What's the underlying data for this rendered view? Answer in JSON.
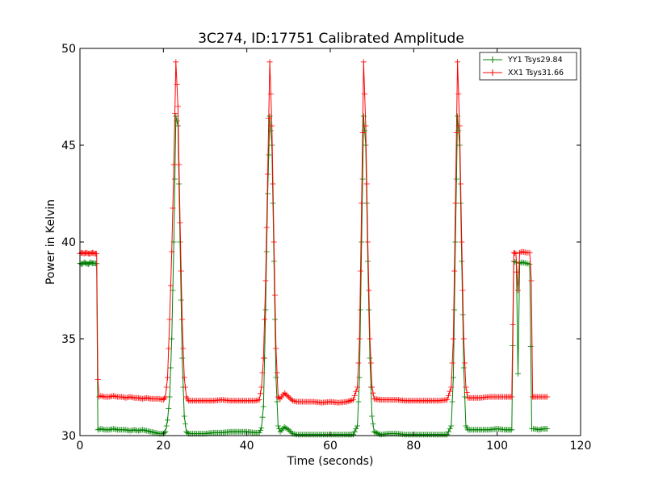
{
  "chart_data": {
    "type": "line",
    "title": "3C274, ID:17751 Calibrated Amplitude",
    "xlabel": "Time (seconds)",
    "ylabel": "Power in Kelvin",
    "xlim": [
      0,
      120
    ],
    "ylim": [
      30,
      50
    ],
    "xticks": [
      0,
      20,
      40,
      60,
      80,
      100,
      120
    ],
    "yticks": [
      30,
      35,
      40,
      45,
      50
    ],
    "grid": false,
    "legend_position": "top-right",
    "markers": "plus",
    "series": [
      {
        "name": "YY1 Tsys29.84",
        "color": "#008000",
        "points": [
          [
            0.0,
            38.9
          ],
          [
            0.5,
            38.85
          ],
          [
            1.0,
            38.95
          ],
          [
            1.5,
            38.9
          ],
          [
            2.0,
            38.85
          ],
          [
            2.5,
            38.95
          ],
          [
            3.0,
            38.9
          ],
          [
            3.5,
            38.9
          ],
          [
            4.0,
            38.88
          ],
          [
            4.3,
            30.3
          ],
          [
            5.0,
            30.35
          ],
          [
            6.0,
            30.3
          ],
          [
            7.0,
            30.3
          ],
          [
            8.0,
            30.35
          ],
          [
            9.0,
            30.3
          ],
          [
            10.0,
            30.3
          ],
          [
            11.0,
            30.3
          ],
          [
            12.0,
            30.25
          ],
          [
            13.0,
            30.3
          ],
          [
            14.0,
            30.25
          ],
          [
            15.0,
            30.3
          ],
          [
            16.0,
            30.25
          ],
          [
            17.0,
            30.2
          ],
          [
            18.0,
            30.15
          ],
          [
            19.0,
            30.1
          ],
          [
            20.0,
            30.1
          ],
          [
            20.5,
            30.2
          ],
          [
            21.0,
            30.8
          ],
          [
            21.5,
            32.0
          ],
          [
            22.0,
            35.0
          ],
          [
            22.5,
            40.0
          ],
          [
            23.0,
            46.5
          ],
          [
            23.5,
            46.0
          ],
          [
            24.0,
            40.0
          ],
          [
            24.5,
            34.0
          ],
          [
            25.0,
            31.0
          ],
          [
            25.5,
            30.2
          ],
          [
            26.0,
            30.1
          ],
          [
            28.0,
            30.1
          ],
          [
            30.0,
            30.1
          ],
          [
            32.0,
            30.15
          ],
          [
            34.0,
            30.15
          ],
          [
            36.0,
            30.2
          ],
          [
            38.0,
            30.2
          ],
          [
            40.0,
            30.2
          ],
          [
            42.0,
            30.15
          ],
          [
            43.0,
            30.15
          ],
          [
            43.5,
            30.4
          ],
          [
            44.0,
            31.5
          ],
          [
            44.5,
            36.5
          ],
          [
            45.0,
            42.5
          ],
          [
            45.5,
            46.5
          ],
          [
            46.0,
            45.0
          ],
          [
            46.5,
            39.0
          ],
          [
            47.0,
            33.0
          ],
          [
            47.5,
            30.5
          ],
          [
            48.0,
            30.2
          ],
          [
            49.0,
            30.45
          ],
          [
            50.0,
            30.3
          ],
          [
            51.0,
            30.1
          ],
          [
            52.0,
            30.05
          ],
          [
            54.0,
            30.05
          ],
          [
            56.0,
            30.05
          ],
          [
            58.0,
            30.05
          ],
          [
            60.0,
            30.05
          ],
          [
            62.0,
            30.05
          ],
          [
            64.0,
            30.05
          ],
          [
            65.5,
            30.05
          ],
          [
            66.5,
            30.5
          ],
          [
            67.0,
            33.0
          ],
          [
            67.5,
            40.0
          ],
          [
            68.0,
            46.5
          ],
          [
            68.5,
            45.0
          ],
          [
            69.0,
            39.0
          ],
          [
            69.5,
            34.0
          ],
          [
            70.0,
            31.0
          ],
          [
            70.5,
            30.2
          ],
          [
            72.0,
            30.05
          ],
          [
            74.0,
            30.1
          ],
          [
            76.0,
            30.1
          ],
          [
            78.0,
            30.05
          ],
          [
            80.0,
            30.05
          ],
          [
            82.0,
            30.05
          ],
          [
            84.0,
            30.05
          ],
          [
            86.0,
            30.05
          ],
          [
            88.0,
            30.05
          ],
          [
            89.0,
            30.5
          ],
          [
            89.5,
            33.0
          ],
          [
            90.0,
            40.0
          ],
          [
            90.5,
            46.5
          ],
          [
            91.0,
            45.0
          ],
          [
            91.5,
            39.0
          ],
          [
            92.0,
            33.5
          ],
          [
            92.5,
            30.5
          ],
          [
            93.0,
            30.3
          ],
          [
            94.0,
            30.3
          ],
          [
            96.0,
            30.3
          ],
          [
            98.0,
            30.3
          ],
          [
            100.0,
            30.35
          ],
          [
            102.0,
            30.3
          ],
          [
            103.5,
            30.3
          ],
          [
            104.0,
            39.0
          ],
          [
            104.6,
            38.95
          ],
          [
            105.0,
            33.2
          ],
          [
            105.4,
            38.9
          ],
          [
            106.0,
            38.95
          ],
          [
            107.0,
            38.9
          ],
          [
            107.8,
            38.85
          ],
          [
            108.3,
            30.35
          ],
          [
            109.0,
            30.35
          ],
          [
            110.0,
            30.3
          ],
          [
            111.0,
            30.35
          ],
          [
            112.0,
            30.35
          ]
        ]
      },
      {
        "name": "XX1 Tsys31.66",
        "color": "#ff0000",
        "points": [
          [
            0.0,
            39.4
          ],
          [
            0.5,
            39.45
          ],
          [
            1.0,
            39.4
          ],
          [
            1.5,
            39.45
          ],
          [
            2.0,
            39.4
          ],
          [
            2.5,
            39.4
          ],
          [
            3.0,
            39.45
          ],
          [
            3.5,
            39.4
          ],
          [
            4.0,
            39.4
          ],
          [
            4.3,
            32.9
          ],
          [
            4.6,
            32.0
          ],
          [
            5.0,
            32.05
          ],
          [
            6.0,
            32.0
          ],
          [
            7.0,
            32.0
          ],
          [
            8.0,
            32.05
          ],
          [
            9.0,
            32.0
          ],
          [
            10.0,
            32.0
          ],
          [
            11.0,
            31.95
          ],
          [
            12.0,
            32.0
          ],
          [
            13.0,
            31.95
          ],
          [
            14.0,
            31.95
          ],
          [
            15.0,
            31.9
          ],
          [
            16.0,
            31.95
          ],
          [
            17.0,
            31.9
          ],
          [
            18.0,
            31.9
          ],
          [
            19.0,
            31.9
          ],
          [
            20.0,
            31.85
          ],
          [
            20.5,
            32.0
          ],
          [
            21.0,
            33.0
          ],
          [
            21.5,
            36.0
          ],
          [
            22.0,
            39.5
          ],
          [
            22.5,
            44.0
          ],
          [
            23.0,
            49.3
          ],
          [
            23.5,
            47.0
          ],
          [
            24.0,
            41.0
          ],
          [
            24.5,
            36.0
          ],
          [
            25.0,
            33.0
          ],
          [
            25.5,
            32.0
          ],
          [
            26.0,
            31.8
          ],
          [
            28.0,
            31.8
          ],
          [
            30.0,
            31.8
          ],
          [
            32.0,
            31.8
          ],
          [
            34.0,
            31.85
          ],
          [
            36.0,
            31.8
          ],
          [
            38.0,
            31.8
          ],
          [
            40.0,
            31.8
          ],
          [
            42.0,
            31.8
          ],
          [
            43.0,
            31.85
          ],
          [
            43.5,
            32.5
          ],
          [
            44.0,
            34.0
          ],
          [
            44.5,
            38.0
          ],
          [
            45.0,
            43.5
          ],
          [
            45.5,
            49.3
          ],
          [
            46.0,
            46.0
          ],
          [
            46.5,
            40.0
          ],
          [
            47.0,
            34.5
          ],
          [
            47.5,
            32.0
          ],
          [
            48.0,
            31.9
          ],
          [
            49.0,
            32.2
          ],
          [
            50.0,
            32.0
          ],
          [
            51.0,
            31.8
          ],
          [
            52.0,
            31.75
          ],
          [
            54.0,
            31.75
          ],
          [
            56.0,
            31.75
          ],
          [
            58.0,
            31.7
          ],
          [
            60.0,
            31.75
          ],
          [
            62.0,
            31.7
          ],
          [
            64.0,
            31.75
          ],
          [
            65.5,
            31.85
          ],
          [
            66.5,
            32.5
          ],
          [
            67.0,
            35.0
          ],
          [
            67.5,
            42.0
          ],
          [
            68.0,
            49.3
          ],
          [
            68.5,
            46.0
          ],
          [
            69.0,
            40.0
          ],
          [
            69.5,
            35.0
          ],
          [
            70.0,
            32.5
          ],
          [
            70.5,
            31.9
          ],
          [
            72.0,
            31.85
          ],
          [
            74.0,
            31.85
          ],
          [
            76.0,
            31.85
          ],
          [
            78.0,
            31.8
          ],
          [
            80.0,
            31.8
          ],
          [
            82.0,
            31.8
          ],
          [
            84.0,
            31.8
          ],
          [
            86.0,
            31.8
          ],
          [
            88.0,
            31.85
          ],
          [
            89.0,
            32.5
          ],
          [
            89.5,
            35.0
          ],
          [
            90.0,
            42.0
          ],
          [
            90.5,
            49.3
          ],
          [
            91.0,
            46.0
          ],
          [
            91.5,
            40.0
          ],
          [
            92.0,
            35.0
          ],
          [
            92.5,
            32.5
          ],
          [
            93.0,
            31.95
          ],
          [
            94.0,
            31.95
          ],
          [
            96.0,
            31.95
          ],
          [
            98.0,
            32.0
          ],
          [
            100.0,
            32.0
          ],
          [
            102.0,
            32.0
          ],
          [
            103.5,
            32.0
          ],
          [
            104.0,
            39.45
          ],
          [
            104.5,
            39.4
          ],
          [
            105.0,
            37.5
          ],
          [
            105.4,
            39.45
          ],
          [
            106.0,
            39.5
          ],
          [
            107.0,
            39.45
          ],
          [
            107.8,
            39.45
          ],
          [
            108.2,
            38.0
          ],
          [
            108.5,
            32.0
          ],
          [
            109.0,
            32.0
          ],
          [
            110.0,
            32.0
          ],
          [
            111.0,
            32.0
          ],
          [
            112.0,
            32.0
          ]
        ]
      }
    ]
  }
}
